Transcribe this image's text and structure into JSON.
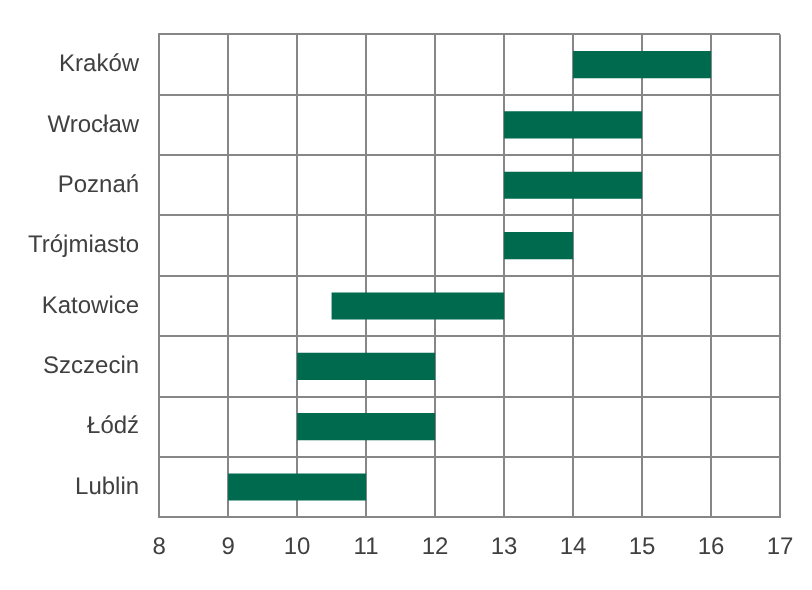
{
  "chart_data": {
    "type": "bar",
    "orientation": "horizontal",
    "categories": [
      "Kraków",
      "Wrocław",
      "Poznań",
      "Trójmiasto",
      "Katowice",
      "Szczecin",
      "Łódź",
      "Lublin"
    ],
    "base": [
      14,
      13,
      13,
      13,
      10.5,
      10,
      10,
      9
    ],
    "values": [
      2,
      2,
      2,
      1,
      2.5,
      2,
      2,
      2
    ],
    "color": "#006a4e",
    "xlim": [
      8,
      17
    ],
    "xticks": [
      8,
      9,
      10,
      11,
      12,
      13,
      14,
      15,
      16,
      17
    ],
    "grid": true,
    "legend": false
  }
}
